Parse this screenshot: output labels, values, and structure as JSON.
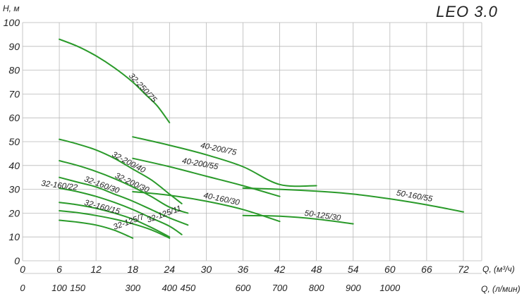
{
  "chart_data": {
    "type": "line",
    "title": "LEO 3.0",
    "ylabel": "H, м",
    "xlabel": "Q, (м³/ч)",
    "x2label": "Q, (л/мин)",
    "ylim": [
      0,
      100
    ],
    "xlim": [
      0,
      75
    ],
    "grid": true,
    "y_ticks": [
      0,
      10,
      20,
      30,
      40,
      50,
      60,
      70,
      80,
      90,
      100
    ],
    "x_ticks": [
      0,
      6,
      12,
      18,
      24,
      30,
      36,
      42,
      48,
      54,
      60,
      66,
      72
    ],
    "x2_ticks": [
      {
        "label": "0",
        "at": 0
      },
      {
        "label": "100",
        "at": 6
      },
      {
        "label": "150",
        "at": 9
      },
      {
        "label": "300",
        "at": 18
      },
      {
        "label": "400",
        "at": 24
      },
      {
        "label": "450",
        "at": 27
      },
      {
        "label": "600",
        "at": 36
      },
      {
        "label": "700",
        "at": 42
      },
      {
        "label": "800",
        "at": 48
      },
      {
        "label": "900",
        "at": 54
      },
      {
        "label": "1000",
        "at": 60
      }
    ],
    "color": "#2a9a2a",
    "series": [
      {
        "name": "32-250/75",
        "x": [
          6,
          9,
          12,
          15,
          18,
          20,
          22,
          24
        ],
        "y": [
          93,
          90,
          86,
          81,
          75,
          70,
          65,
          58
        ],
        "label_at": [
          17.3,
          77.5
        ],
        "label_angle": 47
      },
      {
        "name": "32-200/40",
        "x": [
          6,
          9,
          12,
          15,
          18,
          21,
          24,
          26
        ],
        "y": [
          51,
          49,
          46.5,
          43,
          38.5,
          34,
          28,
          24
        ],
        "label_at": [
          14.5,
          44
        ],
        "label_angle": 28
      },
      {
        "name": "32-200/30",
        "x": [
          6,
          9,
          12,
          15,
          18,
          21,
          24,
          27
        ],
        "y": [
          42,
          40,
          37.5,
          34.5,
          31,
          27,
          22.5,
          20
        ],
        "label_at": [
          15,
          35
        ],
        "label_angle": 25
      },
      {
        "name": "32-160/30",
        "x": [
          6,
          9,
          12,
          15,
          18,
          21,
          24,
          27
        ],
        "y": [
          35,
          33,
          31,
          28,
          25,
          21.5,
          18,
          15
        ],
        "label_at": [
          10,
          33.5
        ],
        "label_angle": 20
      },
      {
        "name": "32-160/22",
        "x": [
          6,
          9,
          12,
          15,
          18,
          21,
          24,
          26
        ],
        "y": [
          30.5,
          29,
          27,
          24.5,
          21.5,
          18,
          14.5,
          11
        ],
        "label_at": [
          3,
          31.5
        ],
        "label_angle": 7
      },
      {
        "name": "32-160/15",
        "x": [
          6,
          9,
          12,
          15,
          18,
          21,
          24
        ],
        "y": [
          24.5,
          23.5,
          22,
          20,
          17.5,
          14,
          10
        ],
        "label_at": [
          10,
          23.5
        ],
        "label_angle": 15
      },
      {
        "name": "32-125/11",
        "x": [
          6,
          9,
          12,
          15,
          18,
          21,
          24
        ],
        "y": [
          21,
          20.2,
          19,
          17.5,
          15.5,
          13,
          9.5
        ],
        "label_at": [
          20.5,
          16
        ],
        "label_angle": -20
      },
      {
        "name": "32-125/7",
        "x": [
          6,
          9,
          12,
          15,
          18
        ],
        "y": [
          17,
          16.2,
          15,
          12.8,
          9.5
        ],
        "label_at": [
          15,
          13
        ],
        "label_angle": -20
      },
      {
        "name": "40-200/75",
        "x": [
          18,
          24,
          30,
          36,
          42,
          48
        ],
        "y": [
          52,
          48.5,
          44.5,
          39.5,
          32,
          31.5
        ],
        "label_at": [
          29,
          47.5
        ],
        "label_angle": 12
      },
      {
        "name": "40-200/55",
        "x": [
          18,
          24,
          30,
          36,
          42
        ],
        "y": [
          43,
          39.5,
          35.5,
          31.5,
          27
        ],
        "label_at": [
          26,
          41
        ],
        "label_angle": 10
      },
      {
        "name": "40-160/30",
        "x": [
          18,
          24,
          30,
          36,
          42
        ],
        "y": [
          29,
          27.5,
          25,
          21.5,
          16.5
        ],
        "label_at": [
          29.5,
          26.5
        ],
        "label_angle": 12
      },
      {
        "name": "50-160/55",
        "x": [
          36,
          42,
          48,
          54,
          60,
          66,
          72
        ],
        "y": [
          30.5,
          30,
          29.2,
          28,
          26,
          23.5,
          20.5
        ],
        "label_at": [
          61,
          27.5
        ],
        "label_angle": 10
      },
      {
        "name": "50-125/30",
        "x": [
          36,
          42,
          48,
          54
        ],
        "y": [
          19,
          18.7,
          17.5,
          15.5
        ],
        "label_at": [
          46,
          19
        ],
        "label_angle": 8
      }
    ]
  }
}
